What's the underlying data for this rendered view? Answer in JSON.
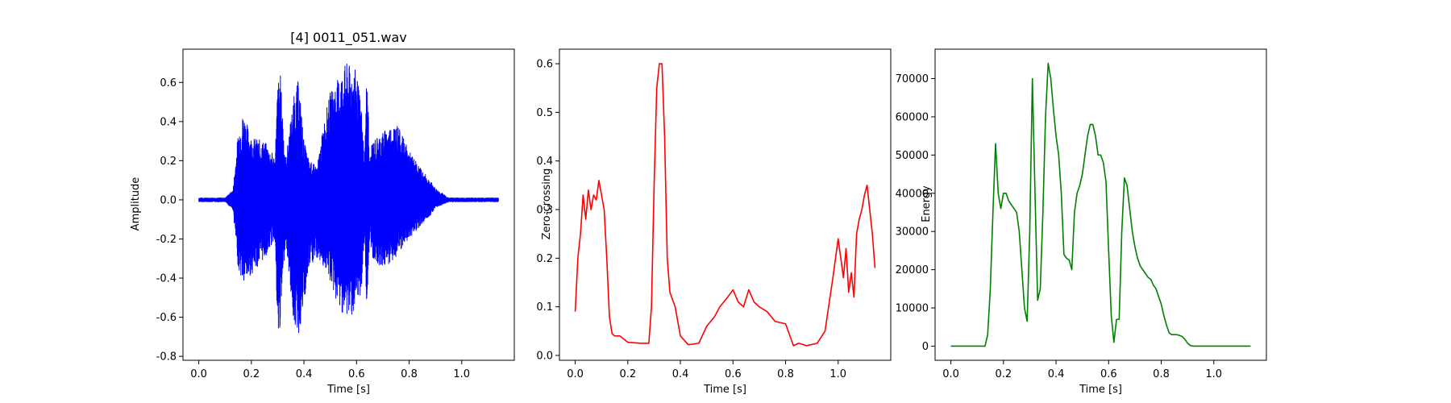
{
  "chart_data": [
    {
      "type": "line",
      "title": "[4] 0011_051.wav",
      "xlabel": "Time [s]",
      "ylabel": "Amplitude",
      "xlim": [
        -0.06,
        1.2
      ],
      "ylim": [
        -0.82,
        0.77
      ],
      "xticks": [
        0.0,
        0.2,
        0.4,
        0.6,
        0.8,
        1.0
      ],
      "yticks": [
        -0.8,
        -0.6,
        -0.4,
        -0.2,
        0.0,
        0.2,
        0.4,
        0.6
      ],
      "color": "#0000ff",
      "envelope": {
        "x": [
          0.0,
          0.1,
          0.13,
          0.15,
          0.17,
          0.2,
          0.25,
          0.29,
          0.3,
          0.31,
          0.33,
          0.36,
          0.38,
          0.4,
          0.42,
          0.45,
          0.48,
          0.5,
          0.53,
          0.56,
          0.6,
          0.62,
          0.63,
          0.64,
          0.65,
          0.66,
          0.7,
          0.75,
          0.8,
          0.85,
          0.88,
          0.9,
          0.95,
          1.0,
          1.14
        ],
        "upper": [
          0.01,
          0.01,
          0.05,
          0.35,
          0.45,
          0.32,
          0.3,
          0.22,
          0.6,
          0.65,
          0.2,
          0.52,
          0.62,
          0.3,
          0.2,
          0.17,
          0.43,
          0.55,
          0.62,
          0.7,
          0.66,
          0.45,
          0.2,
          0.72,
          0.2,
          0.3,
          0.35,
          0.4,
          0.25,
          0.15,
          0.1,
          0.06,
          0.01,
          0.01,
          0.01
        ],
        "lower": [
          -0.01,
          -0.01,
          -0.05,
          -0.35,
          -0.44,
          -0.38,
          -0.3,
          -0.2,
          -0.76,
          -0.65,
          -0.2,
          -0.62,
          -0.7,
          -0.55,
          -0.35,
          -0.3,
          -0.35,
          -0.42,
          -0.55,
          -0.6,
          -0.58,
          -0.45,
          -0.2,
          -0.6,
          -0.2,
          -0.3,
          -0.35,
          -0.3,
          -0.2,
          -0.12,
          -0.08,
          -0.04,
          -0.01,
          -0.01,
          -0.01
        ]
      }
    },
    {
      "type": "line",
      "title": "",
      "xlabel": "Time [s]",
      "ylabel": "Zero-crossing",
      "xlim": [
        -0.06,
        1.2
      ],
      "ylim": [
        -0.01,
        0.63
      ],
      "xticks": [
        0.0,
        0.2,
        0.4,
        0.6,
        0.8,
        1.0
      ],
      "yticks": [
        0.0,
        0.1,
        0.2,
        0.3,
        0.4,
        0.5,
        0.6
      ],
      "color": "#ff0000",
      "x": [
        0.0,
        0.01,
        0.02,
        0.03,
        0.04,
        0.05,
        0.06,
        0.07,
        0.08,
        0.09,
        0.1,
        0.11,
        0.12,
        0.13,
        0.14,
        0.15,
        0.17,
        0.2,
        0.25,
        0.28,
        0.29,
        0.3,
        0.31,
        0.32,
        0.33,
        0.34,
        0.35,
        0.36,
        0.38,
        0.4,
        0.43,
        0.47,
        0.5,
        0.53,
        0.55,
        0.58,
        0.6,
        0.62,
        0.64,
        0.66,
        0.68,
        0.7,
        0.73,
        0.76,
        0.8,
        0.83,
        0.85,
        0.88,
        0.92,
        0.95,
        0.98,
        1.0,
        1.01,
        1.02,
        1.03,
        1.04,
        1.05,
        1.06,
        1.07,
        1.08,
        1.09,
        1.1,
        1.11,
        1.12,
        1.13,
        1.14
      ],
      "y": [
        0.09,
        0.2,
        0.25,
        0.33,
        0.28,
        0.34,
        0.3,
        0.33,
        0.32,
        0.36,
        0.33,
        0.3,
        0.2,
        0.08,
        0.045,
        0.04,
        0.04,
        0.027,
        0.025,
        0.025,
        0.1,
        0.35,
        0.55,
        0.6,
        0.6,
        0.45,
        0.2,
        0.13,
        0.1,
        0.04,
        0.022,
        0.025,
        0.06,
        0.08,
        0.1,
        0.12,
        0.135,
        0.11,
        0.1,
        0.135,
        0.11,
        0.1,
        0.09,
        0.07,
        0.065,
        0.02,
        0.025,
        0.02,
        0.025,
        0.05,
        0.16,
        0.24,
        0.2,
        0.16,
        0.22,
        0.13,
        0.17,
        0.12,
        0.25,
        0.28,
        0.3,
        0.33,
        0.35,
        0.3,
        0.25,
        0.18
      ]
    },
    {
      "type": "line",
      "title": "",
      "xlabel": "Time [s]",
      "ylabel": "Energy",
      "xlim": [
        -0.06,
        1.2
      ],
      "ylim": [
        -3700,
        77700
      ],
      "xticks": [
        0.0,
        0.2,
        0.4,
        0.6,
        0.8,
        1.0
      ],
      "yticks": [
        0,
        10000,
        20000,
        30000,
        40000,
        50000,
        60000,
        70000
      ],
      "color": "#008000",
      "x": [
        0.0,
        0.13,
        0.14,
        0.15,
        0.16,
        0.17,
        0.18,
        0.19,
        0.2,
        0.21,
        0.22,
        0.23,
        0.25,
        0.26,
        0.27,
        0.28,
        0.29,
        0.3,
        0.31,
        0.32,
        0.33,
        0.34,
        0.35,
        0.36,
        0.37,
        0.38,
        0.39,
        0.4,
        0.41,
        0.42,
        0.43,
        0.44,
        0.45,
        0.46,
        0.47,
        0.48,
        0.49,
        0.5,
        0.51,
        0.52,
        0.53,
        0.54,
        0.55,
        0.56,
        0.57,
        0.58,
        0.59,
        0.6,
        0.61,
        0.62,
        0.63,
        0.64,
        0.65,
        0.66,
        0.67,
        0.68,
        0.69,
        0.7,
        0.71,
        0.72,
        0.73,
        0.74,
        0.75,
        0.76,
        0.77,
        0.78,
        0.79,
        0.8,
        0.81,
        0.82,
        0.83,
        0.84,
        0.85,
        0.86,
        0.87,
        0.88,
        0.89,
        0.9,
        0.91,
        0.92,
        0.95,
        1.0,
        1.14
      ],
      "y": [
        0,
        0,
        3000,
        15000,
        35000,
        53000,
        40000,
        36000,
        40000,
        40000,
        38000,
        37000,
        35000,
        30000,
        20000,
        10000,
        6500,
        30000,
        70000,
        40000,
        12000,
        15000,
        35000,
        60000,
        74000,
        70000,
        62000,
        55000,
        50000,
        40000,
        24000,
        23000,
        22500,
        20000,
        35000,
        40000,
        42000,
        45000,
        50000,
        55000,
        58000,
        58000,
        55000,
        50000,
        50000,
        48000,
        43000,
        25000,
        8000,
        1000,
        7000,
        7000,
        30000,
        44000,
        42000,
        36000,
        30000,
        26000,
        23000,
        21000,
        20000,
        19000,
        18000,
        17500,
        16000,
        15000,
        13000,
        11000,
        8000,
        5500,
        3500,
        3000,
        3000,
        3000,
        2800,
        2500,
        1800,
        800,
        200,
        0,
        0,
        0,
        0
      ]
    }
  ]
}
